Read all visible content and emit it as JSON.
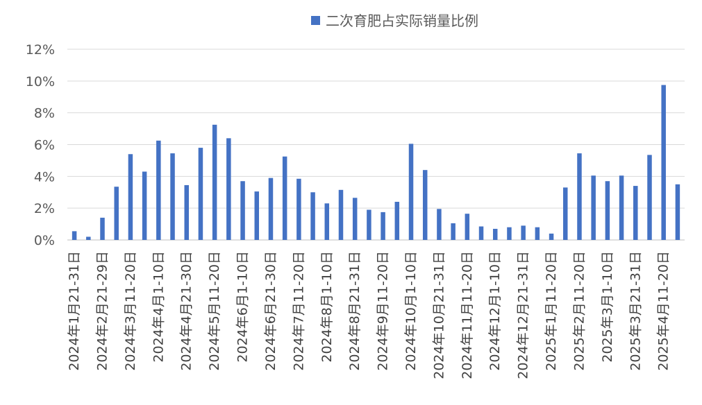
{
  "chart_data": {
    "type": "bar",
    "legend_position": "top",
    "grid": true,
    "series": [
      {
        "name": "二次育肥占实际销量比例",
        "color": "#4472C4",
        "values": [
          0.55,
          0.2,
          1.4,
          3.35,
          5.4,
          4.3,
          6.25,
          5.45,
          3.45,
          5.8,
          7.25,
          6.4,
          3.7,
          3.05,
          3.9,
          5.25,
          3.85,
          3.0,
          2.3,
          3.15,
          2.65,
          1.9,
          1.75,
          2.4,
          6.05,
          4.4,
          1.95,
          1.05,
          1.65,
          0.85,
          0.7,
          0.8,
          0.9,
          0.8,
          0.4,
          3.3,
          5.45,
          4.05,
          3.7,
          4.05,
          3.4,
          5.35,
          9.75,
          3.5
        ]
      }
    ],
    "y_ticks": [
      "0%",
      "2%",
      "4%",
      "6%",
      "8%",
      "10%",
      "12%"
    ],
    "ylim": [
      0,
      12
    ],
    "ytick_step": 2,
    "x_tick_labels": [
      "2024年1月21-31日",
      "2024年2月21-29日",
      "2024年3月11-20日",
      "2024年4月1-10日",
      "2024年4月21-30日",
      "2024年5月11-20日",
      "2024年6月1-10日",
      "2024年6月21-30日",
      "2024年7月11-20日",
      "2024年8月1-10日",
      "2024年8月21-31日",
      "2024年9月11-20日",
      "2024年10月1-10日",
      "2024年10月21-31日",
      "2024年11月11-20日",
      "2024年12月1-10日",
      "2024年12月21-31日",
      "2025年1月11-20日",
      "2025年2月11-20日",
      "2025年3月1-10日",
      "2025年3月21-31日",
      "2025年4月11-20日"
    ],
    "x_tick_positions": [
      0,
      2,
      4,
      6,
      8,
      10,
      12,
      14,
      16,
      18,
      20,
      22,
      24,
      26,
      28,
      30,
      32,
      34,
      36,
      38,
      40,
      42
    ]
  }
}
